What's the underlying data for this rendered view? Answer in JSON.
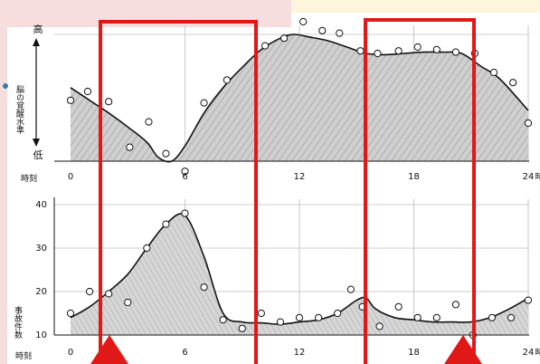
{
  "colors": {
    "background": "#ffffff",
    "corner_pink": "#f7dede",
    "corner_cream": "#fdf5dc",
    "shade": "#c9c9c9",
    "line": "#111111",
    "highlight_box": "#e01818",
    "grid": "#bfbfbf"
  },
  "chart_data": [
    {
      "type": "area",
      "panel": "top",
      "ylabel": "脳の覚醒水準",
      "y_high_label": "高",
      "y_low_label": "低",
      "x_unit_label": "時刻",
      "x_ticks": [
        "0",
        "6",
        "12",
        "18",
        "24"
      ],
      "x_tick_suffix": "時",
      "xlim": [
        0,
        24
      ],
      "ylim": [
        0,
        100
      ],
      "grid": true,
      "curve": {
        "x": [
          0,
          1,
          2,
          3,
          4,
          4.6,
          5.3,
          6,
          7,
          8,
          9,
          10,
          11,
          11.7,
          12.5,
          13.5,
          14.5,
          15.5,
          16.5,
          17.5,
          18.5,
          19.5,
          20.5,
          21.5,
          22.5,
          24
        ],
        "y": [
          58,
          48,
          38,
          27,
          15,
          3,
          0,
          12,
          38,
          58,
          74,
          88,
          97,
          100,
          98,
          95,
          90,
          85,
          84,
          85,
          86,
          86,
          85,
          75,
          65,
          40
        ]
      },
      "points": {
        "x": [
          0,
          0.9,
          2,
          3.1,
          4.1,
          5,
          6,
          7,
          8.2,
          10.2,
          11.2,
          12.2,
          13.2,
          14.1,
          15.2,
          16.1,
          17.2,
          18.2,
          19.2,
          20.2,
          21.2,
          22.2,
          23.2,
          24
        ],
        "y": [
          48,
          55,
          47,
          11,
          31,
          6,
          -8,
          46,
          64,
          91,
          97,
          110,
          103,
          101,
          87,
          85,
          87,
          90,
          88,
          86,
          85,
          70,
          62,
          30
        ]
      }
    },
    {
      "type": "area",
      "panel": "bottom",
      "ylabel": "事故件数",
      "x_unit_label": "時刻",
      "x_ticks": [
        "0",
        "6",
        "12",
        "18",
        "24"
      ],
      "x_tick_suffix": "時",
      "xlim": [
        0,
        24
      ],
      "ylim": [
        10,
        40
      ],
      "y_ticks": [
        "10",
        "20",
        "30",
        "40"
      ],
      "grid": true,
      "curve": {
        "x": [
          0,
          1,
          2,
          3,
          4,
          5,
          6,
          7,
          8,
          9,
          10,
          11,
          12,
          13,
          14,
          15,
          15.5,
          16,
          17,
          18,
          19,
          20,
          21,
          22,
          23,
          24
        ],
        "y": [
          14,
          16.5,
          20,
          24,
          30,
          35.5,
          37.5,
          28,
          15,
          13,
          12.8,
          12.5,
          13,
          13.5,
          15,
          18,
          18.5,
          16,
          14,
          13.5,
          13,
          13,
          13,
          14,
          16,
          18.5
        ]
      },
      "points": {
        "x": [
          0,
          1,
          2,
          3,
          4,
          5,
          6,
          7,
          8,
          9,
          10,
          11,
          12,
          13,
          14,
          14.7,
          15.3,
          16.2,
          17.2,
          18.2,
          19.2,
          20.2,
          21.1,
          22.1,
          23.1,
          24
        ],
        "y": [
          15,
          20,
          19.5,
          17.5,
          30,
          35.5,
          38,
          21,
          13.5,
          11.5,
          15,
          13,
          14,
          14,
          15,
          20.5,
          16.5,
          12,
          16.5,
          14,
          14,
          17,
          10,
          14,
          14,
          18
        ]
      }
    }
  ]
}
